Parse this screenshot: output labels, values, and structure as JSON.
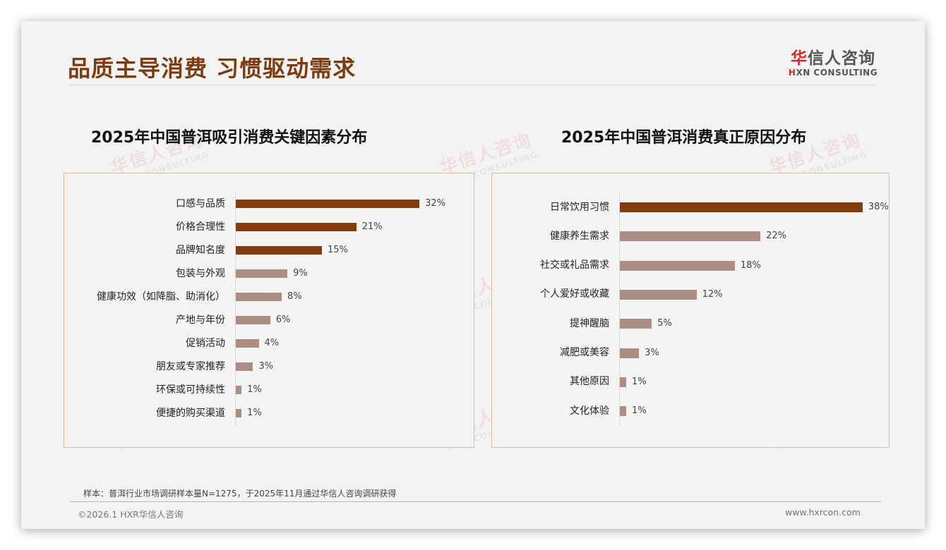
{
  "header": {
    "title": "品质主导消费 习惯驱动需求",
    "logo_cn_first": "华",
    "logo_cn_rest": "信人咨询",
    "logo_en_first": "H",
    "logo_en_rest": "XN CONSULTING"
  },
  "watermark": {
    "cn": "华信人咨询",
    "en": "HXN CONSULTING"
  },
  "colors": {
    "highlight_bar": "#843c0c",
    "normal_bar": "#ac8d83",
    "panel_border": "#e7b89a",
    "title": "#7c3c12"
  },
  "chart_data": [
    {
      "type": "bar",
      "orientation": "horizontal",
      "title": "2025年中国普洱吸引消费关键因素分布",
      "categories": [
        "口感与品质",
        "价格合理性",
        "品牌知名度",
        "包装与外观",
        "健康功效（如降脂、助消化）",
        "产地与年份",
        "促销活动",
        "朋友或专家推荐",
        "环保或可持续性",
        "便捷的购买渠道"
      ],
      "values": [
        32,
        21,
        15,
        9,
        8,
        6,
        4,
        3,
        1,
        1
      ],
      "value_labels": [
        "32%",
        "21%",
        "15%",
        "9%",
        "8%",
        "6%",
        "4%",
        "3%",
        "1%",
        "1%"
      ],
      "highlighted": [
        true,
        true,
        true,
        false,
        false,
        false,
        false,
        false,
        false,
        false
      ],
      "unit": "%",
      "xlabel": "",
      "ylabel": "",
      "grid": false,
      "legend": "none"
    },
    {
      "type": "bar",
      "orientation": "horizontal",
      "title": "2025年中国普洱消费真正原因分布",
      "categories": [
        "日常饮用习惯",
        "健康养生需求",
        "社交或礼品需求",
        "个人爱好或收藏",
        "提神醒脑",
        "减肥或美容",
        "其他原因",
        "文化体验"
      ],
      "values": [
        38,
        22,
        18,
        12,
        5,
        3,
        1,
        1
      ],
      "value_labels": [
        "38%",
        "22%",
        "18%",
        "12%",
        "5%",
        "3%",
        "1%",
        "1%"
      ],
      "highlighted": [
        true,
        false,
        false,
        false,
        false,
        false,
        false,
        false
      ],
      "unit": "%",
      "xlabel": "",
      "ylabel": "",
      "grid": false,
      "legend": "none"
    }
  ],
  "footer": {
    "note": "样本：普洱行业市场调研样本量N=1275，于2025年11月通过华信人咨询调研获得",
    "copyright": "©2026.1 HXR华信人咨询",
    "url": "www.hxrcon.com"
  }
}
